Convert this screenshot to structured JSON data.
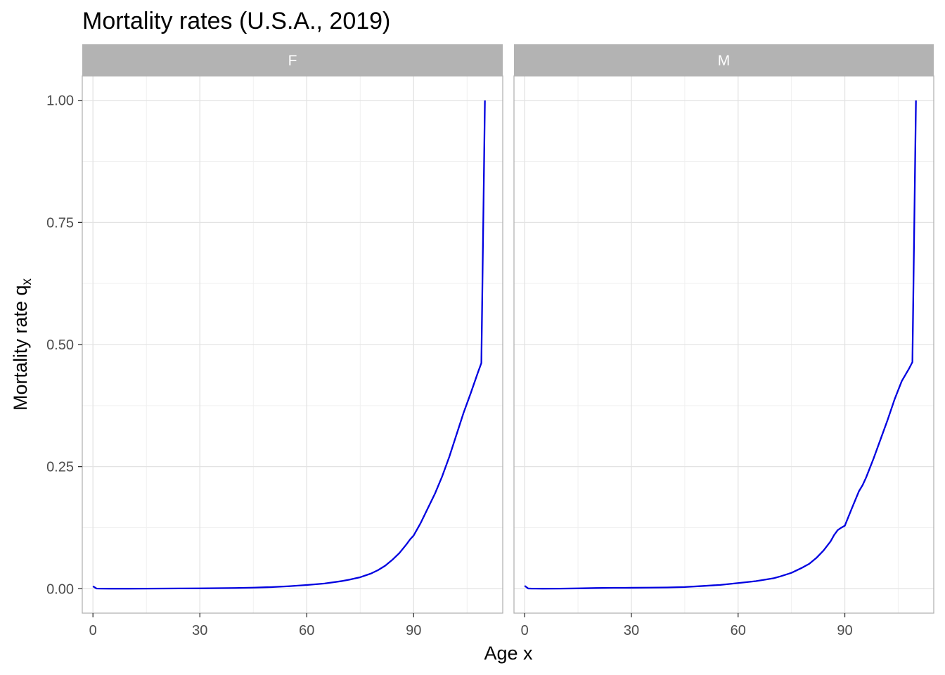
{
  "chart_data": {
    "type": "line",
    "title": "Mortality rates (U.S.A., 2019)",
    "xlabel": "Age x",
    "ylabel": {
      "main": "Mortality rate q",
      "sub": "x"
    },
    "xlim": [
      -3,
      115
    ],
    "ylim": [
      -0.05,
      1.05
    ],
    "xticks": [
      0,
      30,
      60,
      90
    ],
    "xtick_labels": [
      "0",
      "30",
      "60",
      "90"
    ],
    "yticks": [
      0,
      0.25,
      0.5,
      0.75,
      1.0
    ],
    "ytick_labels": [
      "0.00",
      "0.25",
      "0.50",
      "0.75",
      "1.00"
    ],
    "grid": true,
    "line_color": "#0000e0",
    "strip_color": "#b3b3b3",
    "panels": [
      {
        "label": "F",
        "x": [
          0,
          1,
          2,
          5,
          10,
          15,
          20,
          25,
          30,
          35,
          40,
          45,
          50,
          55,
          60,
          65,
          70,
          72,
          75,
          78,
          80,
          82,
          84,
          86,
          88,
          89,
          90,
          92,
          94,
          95,
          96,
          98,
          100,
          102,
          104,
          106,
          108,
          109,
          110
        ],
        "y": [
          0.005,
          0.0004,
          0.0002,
          0.0001,
          0.0001,
          0.0002,
          0.0004,
          0.0006,
          0.0008,
          0.0011,
          0.0015,
          0.0022,
          0.0033,
          0.0051,
          0.0076,
          0.0107,
          0.0158,
          0.0185,
          0.0235,
          0.031,
          0.038,
          0.047,
          0.059,
          0.073,
          0.091,
          0.101,
          0.109,
          0.135,
          0.165,
          0.18,
          0.195,
          0.23,
          0.27,
          0.315,
          0.36,
          0.4,
          0.442,
          0.462,
          1.0
        ]
      },
      {
        "label": "M",
        "x": [
          0,
          1,
          2,
          5,
          10,
          15,
          20,
          25,
          30,
          35,
          40,
          45,
          50,
          55,
          60,
          65,
          70,
          72,
          75,
          78,
          80,
          82,
          84,
          86,
          87,
          88,
          89,
          90,
          92,
          94,
          95,
          96,
          98,
          100,
          102,
          104,
          106,
          108,
          109,
          110
        ],
        "y": [
          0.006,
          0.0005,
          0.0002,
          0.0001,
          0.0002,
          0.0007,
          0.0014,
          0.0018,
          0.0019,
          0.0022,
          0.0026,
          0.0035,
          0.0055,
          0.0078,
          0.0115,
          0.0155,
          0.0215,
          0.0255,
          0.0325,
          0.043,
          0.051,
          0.063,
          0.078,
          0.097,
          0.11,
          0.12,
          0.125,
          0.129,
          0.165,
          0.2,
          0.212,
          0.228,
          0.265,
          0.305,
          0.345,
          0.388,
          0.425,
          0.45,
          0.464,
          1.0
        ]
      }
    ]
  }
}
